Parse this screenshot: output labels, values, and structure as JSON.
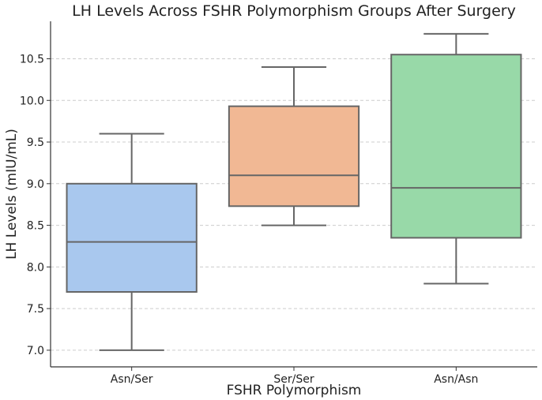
{
  "chart_data": {
    "type": "box",
    "title": "LH Levels Across FSHR Polymorphism Groups After Surgery",
    "xlabel": "FSHR Polymorphism",
    "ylabel": "LH Levels (mIU/mL)",
    "ylim": [
      6.8,
      10.95
    ],
    "yticks": [
      "7.0",
      "7.5",
      "8.0",
      "8.5",
      "9.0",
      "9.5",
      "10.0",
      "10.5"
    ],
    "grid": "horizontal dashed",
    "categories": [
      "Asn/Ser",
      "Ser/Ser",
      "Asn/Asn"
    ],
    "boxes": [
      {
        "category": "Asn/Ser",
        "whisker_low": 7.0,
        "q1": 7.7,
        "median": 8.3,
        "q3": 9.0,
        "whisker_high": 9.6,
        "color": "#a9c8ee"
      },
      {
        "category": "Ser/Ser",
        "whisker_low": 8.5,
        "q1": 8.73,
        "median": 9.1,
        "q3": 9.93,
        "whisker_high": 10.4,
        "color": "#f1b894"
      },
      {
        "category": "Asn/Asn",
        "whisker_low": 7.8,
        "q1": 8.35,
        "median": 8.95,
        "q3": 10.55,
        "whisker_high": 10.8,
        "color": "#98d9a8"
      }
    ]
  }
}
